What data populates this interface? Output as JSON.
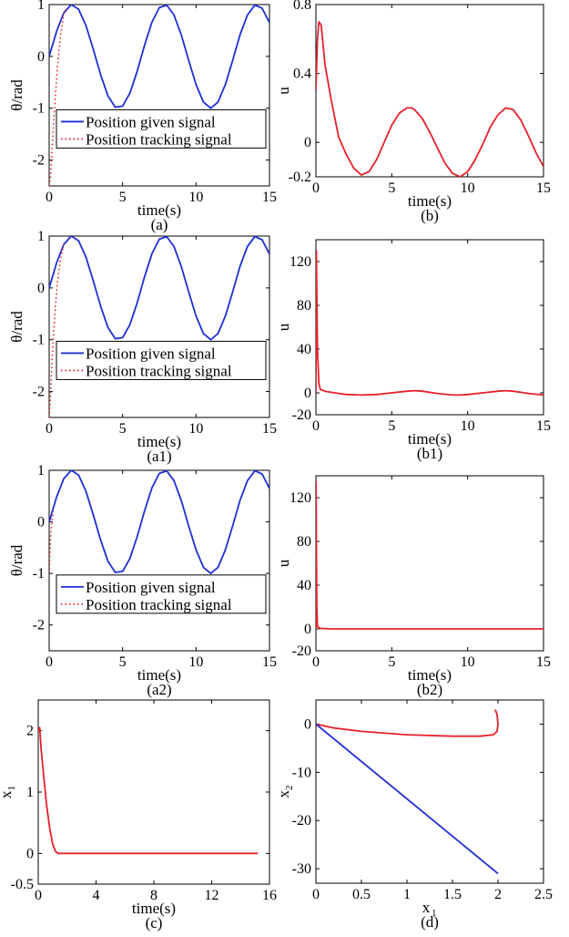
{
  "chart_data": [
    {
      "id": "a",
      "type": "line",
      "caption": "(a)",
      "xlabel": "time(s)",
      "ylabel": "θ/rad",
      "xlim": [
        0,
        15
      ],
      "ylim": [
        -2.5,
        1
      ],
      "xticks": [
        0,
        5,
        10,
        15
      ],
      "yticks": [
        1,
        0,
        -1,
        -2
      ],
      "legend": [
        "Position given signal",
        "Position tracking signal"
      ],
      "series": [
        {
          "name": "Position given signal",
          "color": "#1f2fd6",
          "style": "solid",
          "x": [
            0,
            0.5,
            1,
            1.5,
            2,
            2.5,
            3,
            3.5,
            4,
            4.5,
            5,
            5.5,
            6,
            6.5,
            7,
            7.5,
            8,
            8.5,
            9,
            9.5,
            10,
            10.5,
            11,
            11.5,
            12,
            12.5,
            13,
            13.5,
            14,
            14.5,
            15
          ],
          "y": [
            0,
            0.48,
            0.84,
            1.0,
            0.91,
            0.6,
            0.14,
            -0.35,
            -0.76,
            -0.98,
            -0.96,
            -0.71,
            -0.28,
            0.22,
            0.66,
            0.94,
            0.99,
            0.8,
            0.41,
            -0.08,
            -0.54,
            -0.88,
            -1.0,
            -0.88,
            -0.54,
            -0.07,
            0.42,
            0.8,
            0.99,
            0.93,
            0.65
          ]
        },
        {
          "name": "Position tracking signal",
          "color": "#e8202a",
          "style": "dotted",
          "x": [
            0,
            0.1,
            0.2,
            0.3,
            0.4,
            0.5,
            0.6,
            0.7,
            0.8,
            1.0,
            1.2
          ],
          "y": [
            -2.5,
            -2.3,
            -1.8,
            -1.3,
            -0.85,
            -0.45,
            -0.1,
            0.2,
            0.45,
            0.84,
            0.93
          ]
        }
      ]
    },
    {
      "id": "b",
      "type": "line",
      "caption": "(b)",
      "xlabel": "time(s)",
      "ylabel": "u",
      "xlim": [
        0,
        15
      ],
      "ylim": [
        -0.2,
        0.8
      ],
      "xticks": [
        0,
        5,
        10,
        15
      ],
      "yticks": [
        0.8,
        0.4,
        0,
        -0.2
      ],
      "series": [
        {
          "color": "#e8202a",
          "style": "solid",
          "x": [
            0,
            0.1,
            0.2,
            0.35,
            0.6,
            1,
            1.5,
            2,
            2.5,
            3,
            3.5,
            4,
            4.5,
            5,
            5.5,
            6,
            6.3,
            6.5,
            7,
            7.5,
            8,
            8.5,
            9,
            9.5,
            10,
            10.5,
            11,
            11.5,
            12,
            12.5,
            13,
            13.5,
            14,
            14.5,
            15
          ],
          "y": [
            0.3,
            0.6,
            0.7,
            0.68,
            0.45,
            0.25,
            0.03,
            -0.07,
            -0.15,
            -0.19,
            -0.17,
            -0.1,
            0.0,
            0.1,
            0.17,
            0.2,
            0.2,
            0.19,
            0.14,
            0.06,
            -0.03,
            -0.12,
            -0.18,
            -0.2,
            -0.17,
            -0.1,
            -0.01,
            0.09,
            0.16,
            0.2,
            0.19,
            0.13,
            0.04,
            -0.06,
            -0.14
          ]
        }
      ]
    },
    {
      "id": "a1",
      "type": "line",
      "caption": "(a1)",
      "xlabel": "time(s)",
      "ylabel": "θ/rad",
      "xlim": [
        0,
        15
      ],
      "ylim": [
        -2.5,
        1
      ],
      "xticks": [
        0,
        5,
        10,
        15
      ],
      "yticks": [
        1,
        0,
        -1,
        -2
      ],
      "legend": [
        "Position given signal",
        "Position tracking signal"
      ],
      "series": [
        {
          "name": "Position given signal",
          "color": "#1f2fd6",
          "style": "solid",
          "x": [
            0,
            0.5,
            1,
            1.5,
            2,
            2.5,
            3,
            3.5,
            4,
            4.5,
            5,
            5.5,
            6,
            6.5,
            7,
            7.5,
            8,
            8.5,
            9,
            9.5,
            10,
            10.5,
            11,
            11.5,
            12,
            12.5,
            13,
            13.5,
            14,
            14.5,
            15
          ],
          "y": [
            0,
            0.48,
            0.84,
            1.0,
            0.91,
            0.6,
            0.14,
            -0.35,
            -0.76,
            -0.98,
            -0.96,
            -0.71,
            -0.28,
            0.22,
            0.66,
            0.94,
            0.99,
            0.8,
            0.41,
            -0.08,
            -0.54,
            -0.88,
            -1.0,
            -0.88,
            -0.54,
            -0.07,
            0.42,
            0.8,
            0.99,
            0.93,
            0.65
          ]
        },
        {
          "name": "Position tracking signal",
          "color": "#e8202a",
          "style": "dotted",
          "x": [
            0,
            0.1,
            0.2,
            0.3,
            0.4,
            0.5,
            0.6,
            0.8,
            1.0
          ],
          "y": [
            -2.5,
            -2.0,
            -1.4,
            -0.9,
            -0.45,
            -0.1,
            0.2,
            0.6,
            0.84
          ]
        }
      ]
    },
    {
      "id": "b1",
      "type": "line",
      "caption": "(b1)",
      "xlabel": "time(s)",
      "ylabel": "u",
      "xlim": [
        0,
        15
      ],
      "ylim": [
        -20,
        140
      ],
      "xticks": [
        0,
        5,
        10,
        15
      ],
      "yticks": [
        120,
        80,
        40,
        0,
        -20
      ],
      "series": [
        {
          "color": "#e8202a",
          "style": "solid",
          "x": [
            0,
            0.03,
            0.06,
            0.1,
            0.2,
            0.3,
            0.6,
            1,
            1.5,
            2,
            3,
            4,
            5,
            6,
            6.5,
            7,
            8,
            9,
            9.5,
            10,
            11,
            12,
            12.5,
            13,
            14,
            15
          ],
          "y": [
            0,
            130,
            90,
            40,
            8,
            3,
            1.5,
            0.5,
            -0.5,
            -1.5,
            -2,
            -1.5,
            0,
            1.5,
            2,
            1.5,
            -0.5,
            -2,
            -2,
            -1.5,
            0,
            1.5,
            2,
            1.5,
            -0.5,
            -2
          ]
        }
      ]
    },
    {
      "id": "a2",
      "type": "line",
      "caption": "(a2)",
      "xlabel": "time(s)",
      "ylabel": "θ/rad",
      "xlim": [
        0,
        15
      ],
      "ylim": [
        -2.5,
        1
      ],
      "xticks": [
        0,
        5,
        10,
        15
      ],
      "yticks": [
        1,
        0,
        -1,
        -2
      ],
      "legend": [
        "Position given signal",
        "Position tracking signal"
      ],
      "series": [
        {
          "name": "Position given signal",
          "color": "#1f2fd6",
          "style": "solid",
          "x": [
            0,
            0.5,
            1,
            1.5,
            2,
            2.5,
            3,
            3.5,
            4,
            4.5,
            5,
            5.5,
            6,
            6.5,
            7,
            7.5,
            8,
            8.5,
            9,
            9.5,
            10,
            10.5,
            11,
            11.5,
            12,
            12.5,
            13,
            13.5,
            14,
            14.5,
            15
          ],
          "y": [
            0,
            0.48,
            0.84,
            1.0,
            0.91,
            0.6,
            0.14,
            -0.35,
            -0.76,
            -0.98,
            -0.96,
            -0.71,
            -0.28,
            0.22,
            0.66,
            0.94,
            0.99,
            0.8,
            0.41,
            -0.08,
            -0.54,
            -0.88,
            -1.0,
            -0.88,
            -0.54,
            -0.07,
            0.42,
            0.8,
            0.99,
            0.93,
            0.65
          ]
        },
        {
          "name": "Position tracking signal",
          "color": "#e8202a",
          "style": "dotted",
          "x": [
            0,
            0.05,
            0.1,
            0.15,
            0.2,
            0.3
          ],
          "y": [
            -1.0,
            -0.6,
            -0.3,
            -0.1,
            0.05,
            0.2
          ]
        }
      ]
    },
    {
      "id": "b2",
      "type": "line",
      "caption": "(b2)",
      "xlabel": "time(s)",
      "ylabel": "u",
      "xlim": [
        0,
        15
      ],
      "ylim": [
        -20,
        140
      ],
      "xticks": [
        0,
        5,
        10,
        15
      ],
      "yticks": [
        120,
        80,
        40,
        0,
        -20
      ],
      "series": [
        {
          "color": "#e8202a",
          "style": "solid",
          "x": [
            0,
            0.01,
            0.03,
            0.06,
            0.1,
            0.3,
            1,
            5,
            10,
            15
          ],
          "y": [
            0,
            135,
            80,
            20,
            2,
            0.5,
            0,
            0,
            0,
            0
          ]
        }
      ]
    },
    {
      "id": "c",
      "type": "line",
      "caption": "(c)",
      "xlabel": "time(s)",
      "ylabel": "x1",
      "xlim": [
        0,
        16
      ],
      "ylim": [
        -0.5,
        2.5
      ],
      "xticks": [
        0,
        4,
        8,
        12,
        16
      ],
      "yticks": [
        2,
        1,
        0,
        -0.5
      ],
      "series": [
        {
          "color": "#e8202a",
          "style": "solid",
          "x": [
            0,
            0.1,
            0.2,
            0.4,
            0.6,
            0.8,
            1.0,
            1.2,
            1.4,
            2,
            5,
            10,
            15.2
          ],
          "y": [
            2.0,
            2.05,
            1.7,
            1.2,
            0.75,
            0.4,
            0.15,
            0.03,
            0.0,
            0.0,
            0.0,
            0.0,
            0.0
          ]
        }
      ]
    },
    {
      "id": "d",
      "type": "line",
      "caption": "(d)",
      "xlabel": "x1",
      "ylabel": "x2",
      "xlim": [
        0,
        2.5
      ],
      "ylim": [
        -33,
        5
      ],
      "xticks": [
        0,
        0.5,
        1,
        1.5,
        2,
        2.5
      ],
      "yticks": [
        0,
        -10,
        -20,
        -30
      ],
      "series": [
        {
          "color": "#e8202a",
          "style": "solid",
          "x": [
            1.97,
            1.99,
            2.0,
            1.99,
            1.95,
            1.8,
            1.5,
            1.0,
            0.5,
            0.2,
            0.0
          ],
          "y": [
            3.0,
            2.0,
            0.0,
            -1.5,
            -2.2,
            -2.5,
            -2.5,
            -2.2,
            -1.5,
            -0.8,
            0.0
          ]
        },
        {
          "color": "#1f2fd6",
          "style": "solid",
          "x": [
            0,
            2.0
          ],
          "y": [
            0,
            -31
          ]
        }
      ]
    }
  ]
}
